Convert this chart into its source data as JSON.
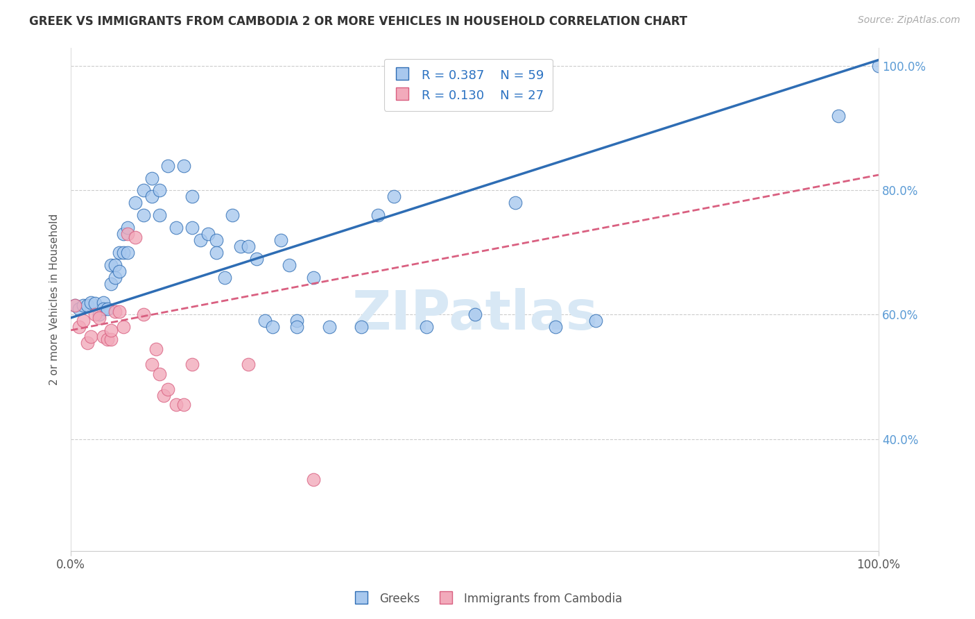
{
  "title": "GREEK VS IMMIGRANTS FROM CAMBODIA 2 OR MORE VEHICLES IN HOUSEHOLD CORRELATION CHART",
  "source": "Source: ZipAtlas.com",
  "ylabel": "2 or more Vehicles in Household",
  "legend_label1": "Greeks",
  "legend_label2": "Immigrants from Cambodia",
  "R1": "0.387",
  "N1": "59",
  "R2": "0.130",
  "N2": "27",
  "color_blue": "#A8C8EE",
  "color_pink": "#F2AABB",
  "color_line_blue": "#2E6DB4",
  "color_line_pink": "#D95F80",
  "watermark_color": "#D8E8F5",
  "blue_line_x0": 0.0,
  "blue_line_y0": 0.595,
  "blue_line_x1": 1.0,
  "blue_line_y1": 1.01,
  "pink_line_x0": 0.0,
  "pink_line_y0": 0.575,
  "pink_line_x1": 1.0,
  "pink_line_y1": 0.825,
  "blue_x": [
    0.005,
    0.01,
    0.015,
    0.02,
    0.025,
    0.03,
    0.035,
    0.04,
    0.04,
    0.045,
    0.05,
    0.05,
    0.055,
    0.055,
    0.06,
    0.06,
    0.065,
    0.065,
    0.07,
    0.07,
    0.08,
    0.09,
    0.09,
    0.1,
    0.1,
    0.11,
    0.11,
    0.12,
    0.13,
    0.14,
    0.15,
    0.15,
    0.16,
    0.17,
    0.18,
    0.18,
    0.19,
    0.2,
    0.21,
    0.22,
    0.23,
    0.24,
    0.25,
    0.26,
    0.27,
    0.28,
    0.28,
    0.3,
    0.32,
    0.36,
    0.38,
    0.4,
    0.44,
    0.5,
    0.55,
    0.6,
    0.65,
    0.95,
    1.0
  ],
  "blue_y": [
    0.615,
    0.61,
    0.615,
    0.615,
    0.62,
    0.618,
    0.6,
    0.62,
    0.61,
    0.61,
    0.68,
    0.65,
    0.68,
    0.66,
    0.7,
    0.67,
    0.73,
    0.7,
    0.74,
    0.7,
    0.78,
    0.8,
    0.76,
    0.82,
    0.79,
    0.8,
    0.76,
    0.84,
    0.74,
    0.84,
    0.79,
    0.74,
    0.72,
    0.73,
    0.72,
    0.7,
    0.66,
    0.76,
    0.71,
    0.71,
    0.69,
    0.59,
    0.58,
    0.72,
    0.68,
    0.59,
    0.58,
    0.66,
    0.58,
    0.58,
    0.76,
    0.79,
    0.58,
    0.6,
    0.78,
    0.58,
    0.59,
    0.92,
    1.0
  ],
  "pink_x": [
    0.005,
    0.01,
    0.015,
    0.02,
    0.025,
    0.03,
    0.035,
    0.04,
    0.045,
    0.05,
    0.05,
    0.055,
    0.06,
    0.065,
    0.07,
    0.08,
    0.09,
    0.1,
    0.105,
    0.11,
    0.115,
    0.12,
    0.13,
    0.14,
    0.15,
    0.22,
    0.3
  ],
  "pink_y": [
    0.615,
    0.58,
    0.59,
    0.555,
    0.565,
    0.6,
    0.595,
    0.565,
    0.56,
    0.56,
    0.575,
    0.605,
    0.605,
    0.58,
    0.73,
    0.725,
    0.6,
    0.52,
    0.545,
    0.505,
    0.47,
    0.48,
    0.455,
    0.455,
    0.52,
    0.52,
    0.335
  ],
  "ylim_min": 0.22,
  "ylim_max": 1.03,
  "xlim_min": 0.0,
  "xlim_max": 1.0
}
